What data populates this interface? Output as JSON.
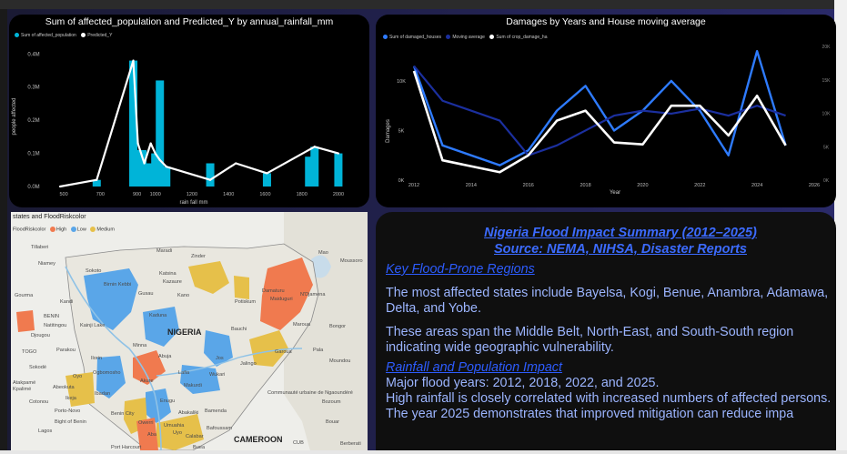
{
  "bar_chart": {
    "title": "Sum of affected_population and Predicted_Y by annual_rainfall_mm",
    "legend": [
      {
        "label": "Sum of affected_population",
        "color": "#00b4d8"
      },
      {
        "label": "Predicted_Y",
        "color": "#ffffff"
      }
    ],
    "y_axis_label": "people affected",
    "x_axis_label": "rain fall mm",
    "y_ticks": [
      "0.0M",
      "0.1M",
      "0.2M",
      "0.3M",
      "0.4M"
    ],
    "x_ticks": [
      "500",
      "700",
      "900",
      "1000",
      "1200",
      "1400",
      "1600",
      "1800",
      "2000"
    ]
  },
  "line_chart": {
    "title": "Damages by Years and House moving average",
    "legend": [
      {
        "label": "Sum of damaged_houses",
        "color": "#2e7bff"
      },
      {
        "label": "Moving average",
        "color": "#1b2f9e"
      },
      {
        "label": "Sum of crop_damage_ha",
        "color": "#ffffff"
      }
    ],
    "y_axis_label": "Damages",
    "x_axis_label": "Year",
    "y_ticks_left": [
      "0K",
      "5K",
      "10K"
    ],
    "y_ticks_right": [
      "0K",
      "5K",
      "10K",
      "15K",
      "20K"
    ],
    "x_ticks": [
      "2012",
      "2014",
      "2016",
      "2018",
      "2020",
      "2022",
      "2024",
      "2026"
    ]
  },
  "chart_data": [
    {
      "type": "bar",
      "title": "Sum of affected_population and Predicted_Y by annual_rainfall_mm",
      "xlabel": "rain fall mm",
      "ylabel": "people affected",
      "xlim": [
        450,
        2050
      ],
      "ylim": [
        0,
        0.42
      ],
      "y_unit": "M",
      "bars": [
        {
          "x": 680,
          "y": 0.02
        },
        {
          "x": 880,
          "y": 0.38
        },
        {
          "x": 905,
          "y": 0.11
        },
        {
          "x": 930,
          "y": 0.11
        },
        {
          "x": 955,
          "y": 0.07
        },
        {
          "x": 975,
          "y": 0.07
        },
        {
          "x": 1000,
          "y": 0.1
        },
        {
          "x": 1025,
          "y": 0.32
        },
        {
          "x": 1060,
          "y": 0.06
        },
        {
          "x": 1300,
          "y": 0.07
        },
        {
          "x": 1610,
          "y": 0.04
        },
        {
          "x": 1840,
          "y": 0.09
        },
        {
          "x": 1870,
          "y": 0.12
        },
        {
          "x": 2000,
          "y": 0.1
        }
      ],
      "series": [
        {
          "name": "Predicted_Y",
          "x": [
            480,
            680,
            880,
            905,
            940,
            975,
            1000,
            1025,
            1060,
            1300,
            1440,
            1610,
            1870,
            2000
          ],
          "y": [
            0.0,
            0.02,
            0.38,
            0.13,
            0.07,
            0.13,
            0.1,
            0.08,
            0.06,
            0.02,
            0.07,
            0.04,
            0.12,
            0.1
          ]
        }
      ]
    },
    {
      "type": "line",
      "title": "Damages by Years and House moving average",
      "xlabel": "Year",
      "ylabel": "Damages",
      "xlim": [
        2012,
        2026
      ],
      "ylim": [
        0,
        13.2
      ],
      "y_unit": "K",
      "series": [
        {
          "name": "Sum of damaged_houses",
          "x": [
            2012,
            2013,
            2015,
            2016,
            2017,
            2018,
            2019,
            2020,
            2021,
            2022,
            2023,
            2024,
            2025
          ],
          "y": [
            11.5,
            3.5,
            1.5,
            3.0,
            7.0,
            9.5,
            5.0,
            7.0,
            10.0,
            7.0,
            2.5,
            13.0,
            3.5
          ]
        },
        {
          "name": "Moving average",
          "x": [
            2012,
            2013,
            2015,
            2016,
            2017,
            2018,
            2019,
            2020,
            2021,
            2022,
            2023,
            2024,
            2025
          ],
          "y": [
            11.5,
            8.0,
            6.0,
            2.5,
            3.5,
            5.0,
            6.5,
            7.0,
            6.7,
            7.2,
            6.5,
            7.5,
            6.5
          ]
        },
        {
          "name": "Sum of crop_damage_ha",
          "x": [
            2012,
            2013,
            2015,
            2016,
            2017,
            2018,
            2019,
            2020,
            2021,
            2022,
            2023,
            2024,
            2025
          ],
          "y": [
            11.0,
            2.0,
            0.8,
            2.5,
            6.0,
            7.0,
            3.8,
            3.6,
            7.5,
            7.5,
            4.5,
            8.5,
            3.5
          ]
        }
      ]
    }
  ],
  "map": {
    "title": "states and FloodRiskcolor",
    "legend_label": "FloodRiskcolor",
    "legend": [
      {
        "label": "High",
        "color": "#f07a4f"
      },
      {
        "label": "Low",
        "color": "#5aa6e8"
      },
      {
        "label": "Medium",
        "color": "#e6c04a"
      }
    ],
    "places": [
      "Tillaberi",
      "Niamey",
      "Maradi",
      "Zinder",
      "Mao",
      "Moussoro",
      "Sokoto",
      "Katsina",
      "Kazaure",
      "Damaturu",
      "Maiduguri",
      "N'Djamena",
      "Gourma",
      "Birnin Kebbi",
      "Gusau",
      "Kano",
      "Potiskum",
      "BENIN",
      "Kandi",
      "Kaduna",
      "Natitingou",
      "Kainji Lake",
      "Bauchi",
      "Maroua",
      "Bongor",
      "Djougou",
      "Minna",
      "NIGERIA",
      "Garoua",
      "Pala",
      "TOGO",
      "Parakou",
      "Ilorin",
      "Abuja",
      "Jos",
      "Lafia",
      "Jalingo",
      "Moundou",
      "Sokodé",
      "Oyo",
      "Ogbomosho",
      "Wukari",
      "Kpalimé",
      "Ibadan",
      "Akure",
      "Makurdi",
      "Atakpamé",
      "Abeokuta",
      "Ikeja",
      "Enugu",
      "Cotonou",
      "Porto-Novo",
      "Benin City",
      "Abakaliki",
      "Bamenda",
      "Communauté urbaine de Ngaoundéré",
      "Bozoum",
      "Lagos",
      "Owerri",
      "Umuahia",
      "Calabar",
      "Bafoussam",
      "Bouar",
      "Bight of Benin",
      "Aba",
      "Port Harcourt",
      "Buea",
      "Uyo",
      "CAMEROON",
      "CUB",
      "Berberati"
    ]
  },
  "summary": {
    "title_line1": "Nigeria Flood Impact Summary (2012–2025)",
    "title_line2": "Source: NEMA, NIHSA, Disaster Reports",
    "heading1": "Key Flood-Prone Regions",
    "para1": "The most affected states include Bayelsa, Kogi, Benue, Anambra, Adamawa, Delta, and Yobe.",
    "para2": "These areas span the Middle Belt, North-East, and South-South region indicating wide geographic vulnerability.",
    "heading2": "Rainfall and Population Impact",
    "para3": "Major flood years: 2012, 2018, 2022, and 2025.",
    "para4": "High rainfall is closely correlated with increased numbers of affected persons.",
    "para5": "The year 2025 demonstrates that improved mitigation can reduce impa"
  }
}
